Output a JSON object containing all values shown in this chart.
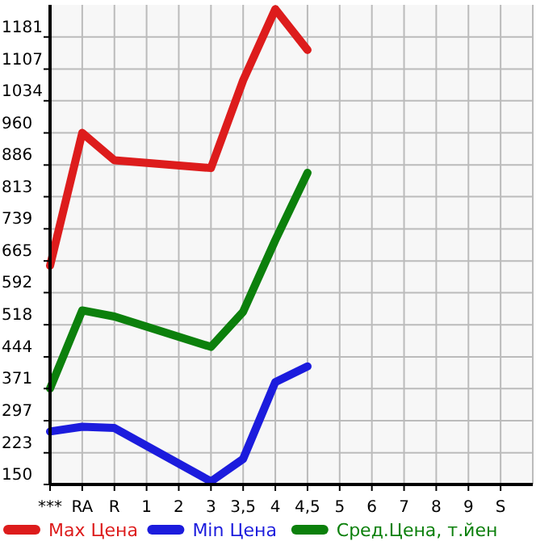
{
  "chart_data": {
    "type": "line",
    "categories": [
      "***",
      "RA",
      "R",
      "1",
      "2",
      "3",
      "3,5",
      "4",
      "4,5",
      "5",
      "6",
      "7",
      "8",
      "9",
      "S"
    ],
    "series": [
      {
        "name": "Max Цена",
        "color": "#dd1c1c",
        "values": [
          654,
          960,
          897,
          null,
          null,
          879,
          1081,
          1245,
          1151,
          null,
          null,
          null,
          null,
          null,
          null
        ]
      },
      {
        "name": "Min Цена",
        "color": "#1c1cdd",
        "values": [
          272,
          283,
          280,
          null,
          null,
          157,
          209,
          386,
          422,
          null,
          null,
          null,
          null,
          null,
          null
        ]
      },
      {
        "name": "Сред.Цена, т.йен",
        "color": "#0c800c",
        "values": [
          371,
          551,
          537,
          null,
          null,
          467,
          548,
          713,
          868,
          null,
          null,
          null,
          null,
          null,
          null
        ]
      }
    ],
    "ylim": [
      150,
      1255
    ],
    "yticks": [
      150,
      223,
      297,
      371,
      444,
      518,
      592,
      665,
      739,
      813,
      886,
      960,
      1034,
      1107,
      1181
    ],
    "grid": true,
    "legend": "bottom",
    "marker": "none",
    "line_style": "solid"
  }
}
